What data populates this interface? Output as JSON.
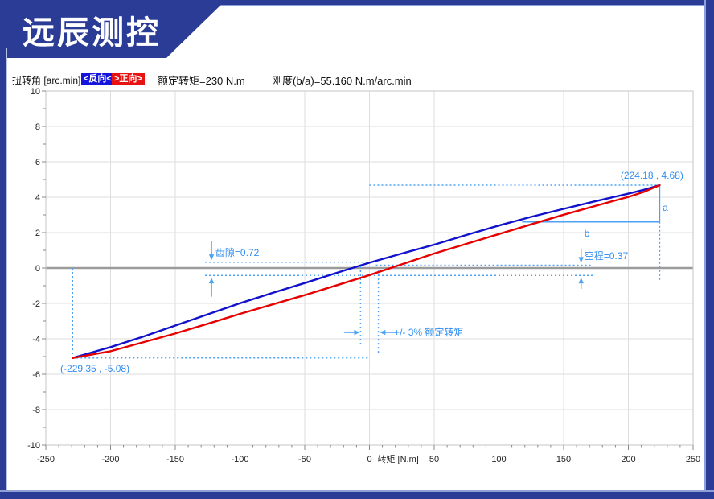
{
  "window": {
    "logo_text": "远辰测控"
  },
  "chart_header": {
    "y_axis_title": "扭转角 [arc.min]",
    "legend": [
      {
        "label": "<反向<",
        "color": "#1414dd"
      },
      {
        "label": ">正向>",
        "color": "#e81212"
      }
    ],
    "rated_torque_text": "额定转矩=230 N.m",
    "stiffness_text": "刚度(b/a)=55.160 N.m/arc.min"
  },
  "chart_data": {
    "type": "line",
    "title": "",
    "xlabel": "转矩 [N.m]",
    "ylabel": "扭转角 [arc.min]",
    "xlim": [
      -250,
      250
    ],
    "ylim": [
      -10,
      10
    ],
    "grid": true,
    "x_ticks": [
      -250,
      -200,
      -150,
      -100,
      -50,
      0,
      50,
      100,
      150,
      200,
      250
    ],
    "y_ticks": [
      10,
      8,
      6,
      4,
      2,
      0,
      -2,
      -4,
      -6,
      -8,
      -10
    ],
    "rated_torque_Nm": 230,
    "stiffness_Nm_per_arcmin": 55.16,
    "backlash_arcmin": 0.72,
    "lost_motion_arcmin": 0.37,
    "series": [
      {
        "name": "反向",
        "color": "#1111cc",
        "points": [
          [
            -229.35,
            -5.08
          ],
          [
            -200,
            -4.47
          ],
          [
            -175,
            -3.88
          ],
          [
            -150,
            -3.25
          ],
          [
            -125,
            -2.62
          ],
          [
            -100,
            -1.99
          ],
          [
            -75,
            -1.41
          ],
          [
            -50,
            -0.85
          ],
          [
            -25,
            -0.27
          ],
          [
            0,
            0.3
          ],
          [
            25,
            0.82
          ],
          [
            50,
            1.32
          ],
          [
            75,
            1.87
          ],
          [
            100,
            2.4
          ],
          [
            125,
            2.89
          ],
          [
            150,
            3.34
          ],
          [
            175,
            3.78
          ],
          [
            200,
            4.2
          ],
          [
            212,
            4.42
          ],
          [
            224.18,
            4.68
          ]
        ]
      },
      {
        "name": "正向",
        "color": "#e60000",
        "points": [
          [
            -229.35,
            -5.08
          ],
          [
            -200,
            -4.7
          ],
          [
            -175,
            -4.2
          ],
          [
            -150,
            -3.7
          ],
          [
            -125,
            -3.15
          ],
          [
            -100,
            -2.59
          ],
          [
            -75,
            -2.06
          ],
          [
            -50,
            -1.53
          ],
          [
            -25,
            -0.97
          ],
          [
            0,
            -0.4
          ],
          [
            25,
            0.21
          ],
          [
            50,
            0.82
          ],
          [
            75,
            1.37
          ],
          [
            100,
            1.92
          ],
          [
            125,
            2.47
          ],
          [
            150,
            3.01
          ],
          [
            175,
            3.52
          ],
          [
            200,
            4.02
          ],
          [
            212,
            4.3
          ],
          [
            224.18,
            4.68
          ]
        ]
      }
    ],
    "annotations": {
      "accent_color": "#4da2f5",
      "text_color": "#2f8df0",
      "dashed_h": [
        {
          "a": 4.68,
          "T1": 0,
          "T2": 224.18
        },
        {
          "a": -5.08,
          "T1": -229.35,
          "T2": 0
        },
        {
          "a": 0.33,
          "T1": -127,
          "T2": -2
        },
        {
          "a": -0.42,
          "T1": -127,
          "T2": 173
        },
        {
          "a": 0.16,
          "T1": 5,
          "T2": 173
        }
      ],
      "dashed_v": [
        {
          "T": -229.35,
          "a1": 0,
          "a2": -5.08
        },
        {
          "T": 224.18,
          "a1": 2.6,
          "a2": -0.68
        },
        {
          "T": -6.9,
          "a1": 0.09,
          "a2": -4.32
        },
        {
          "T": 6.9,
          "a1": -0.14,
          "a2": -4.91
        }
      ],
      "solid": [
        {
          "T1": 118,
          "a1": 2.6,
          "T2": 224.18,
          "a2": 2.6
        },
        {
          "T1": 224.18,
          "a1": 4.68,
          "T2": 224.18,
          "a2": 2.6
        }
      ],
      "arrows": [
        {
          "type": "v",
          "T": -122,
          "from": 1.5,
          "to": 0.45
        },
        {
          "type": "v",
          "T": -122,
          "from": -1.62,
          "to": -0.55
        },
        {
          "type": "v",
          "T": 163.5,
          "from": 1.05,
          "to": 0.3
        },
        {
          "type": "v",
          "T": 163.5,
          "from": -1.18,
          "to": -0.55
        },
        {
          "type": "h",
          "a": -3.64,
          "from": -19.5,
          "to": -7.5
        },
        {
          "type": "h",
          "a": -3.64,
          "from": 21,
          "to": 8
        }
      ],
      "texts": [
        {
          "text": "齿隙=0.72",
          "T": -119,
          "a": 0.68
        },
        {
          "text": "空程=0.37",
          "T": 166,
          "a": 0.5
        },
        {
          "text": "+/- 3% 额定转矩",
          "T": 19,
          "a": -3.82
        },
        {
          "text": "a",
          "T": 226.5,
          "a": 3.23
        },
        {
          "text": "b",
          "T": 166,
          "a": 1.77
        },
        {
          "text": "(224.18 , 4.68)",
          "T": 194,
          "a": 5.05
        },
        {
          "text": "(-229.35 , -5.08)",
          "T": -238.8,
          "a": -5.86
        }
      ]
    }
  }
}
